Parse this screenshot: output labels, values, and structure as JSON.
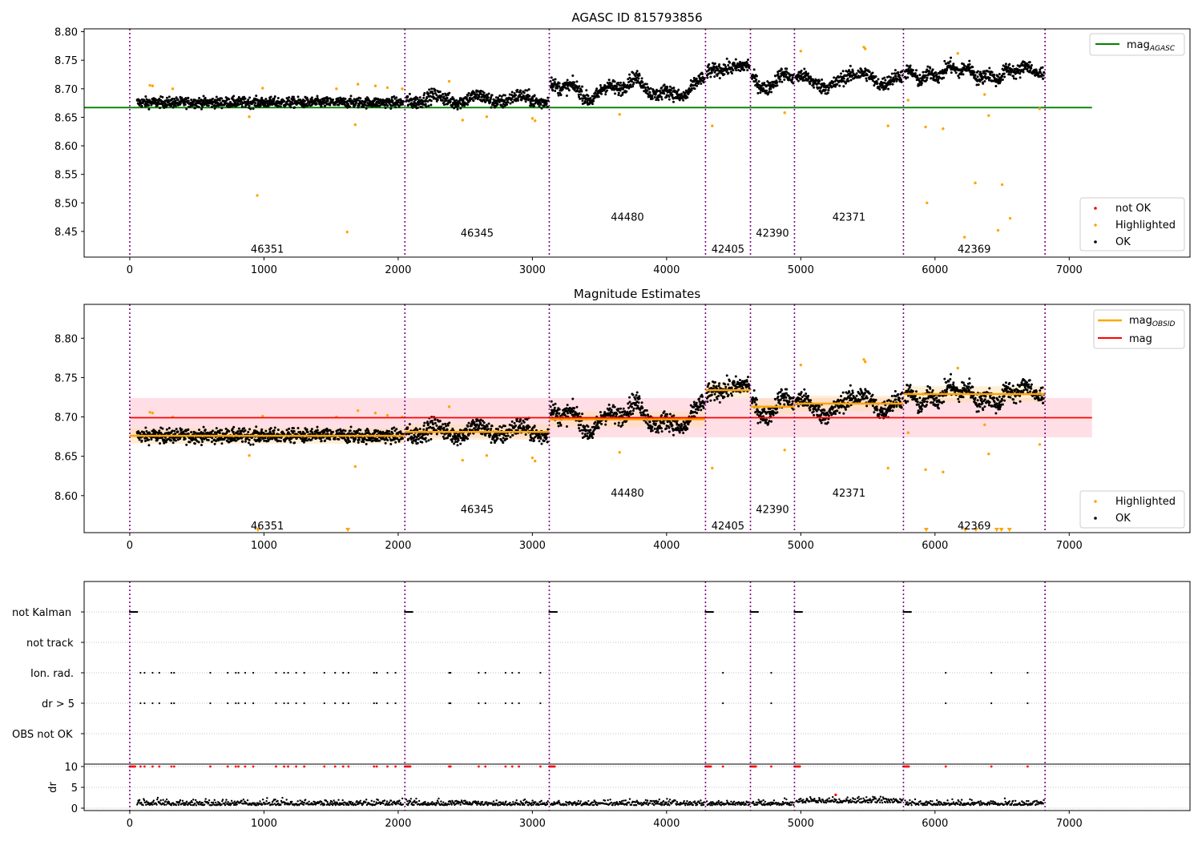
{
  "chart_data": [
    {
      "type": "scatter",
      "title": "AGASC ID 815793856",
      "xlim": [
        -340,
        7900
      ],
      "ylim": [
        8.405,
        8.805
      ],
      "xticks": [
        0,
        1000,
        2000,
        3000,
        4000,
        5000,
        6000,
        7000
      ],
      "xtick_labels": [
        "0",
        "1000",
        "2000",
        "3000",
        "4000",
        "5000",
        "6000",
        "7000"
      ],
      "yticks": [
        8.45,
        8.5,
        8.55,
        8.6,
        8.65,
        8.7,
        8.75,
        8.8
      ],
      "ytick_labels": [
        "8.45",
        "8.50",
        "8.55",
        "8.60",
        "8.65",
        "8.70",
        "8.75",
        "8.80"
      ],
      "obs_boundaries": [
        0,
        2050,
        3126,
        4290,
        4625,
        4953,
        5765,
        6820
      ],
      "obsids": [
        {
          "label": "46351",
          "x": 1025,
          "y": 8.42
        },
        {
          "label": "46345",
          "x": 2588,
          "y": 8.448
        },
        {
          "label": "44480",
          "x": 3708,
          "y": 8.476
        },
        {
          "label": "42405",
          "x": 4457,
          "y": 8.42
        },
        {
          "label": "42390",
          "x": 4789,
          "y": 8.448
        },
        {
          "label": "42371",
          "x": 5359,
          "y": 8.476
        },
        {
          "label": "42369",
          "x": 6292,
          "y": 8.42
        }
      ],
      "segments": [
        {
          "x0": 55,
          "x1": 2040,
          "base": 8.676
        },
        {
          "x0": 2060,
          "x1": 3120,
          "base": 8.682
        },
        {
          "x0": 3136,
          "x1": 4285,
          "base": 8.7
        },
        {
          "x0": 4300,
          "x1": 4620,
          "base": 8.732
        },
        {
          "x0": 4635,
          "x1": 4948,
          "base": 8.713
        },
        {
          "x0": 4963,
          "x1": 5760,
          "base": 8.716
        },
        {
          "x0": 5775,
          "x1": 6815,
          "base": 8.728
        }
      ],
      "mag_agasc": 8.667,
      "highlighted": [
        [
          950,
          8.513
        ],
        [
          1620,
          8.449
        ],
        [
          1680,
          8.637
        ],
        [
          3650,
          8.655
        ],
        [
          4340,
          8.635
        ],
        [
          4880,
          8.658
        ],
        [
          5000,
          8.766
        ],
        [
          5650,
          8.635
        ],
        [
          5800,
          8.68
        ],
        [
          5930,
          8.633
        ],
        [
          5940,
          8.5
        ],
        [
          6060,
          8.63
        ],
        [
          6220,
          8.44
        ],
        [
          6300,
          8.535
        ],
        [
          6370,
          8.69
        ],
        [
          6400,
          8.653
        ],
        [
          6470,
          8.452
        ],
        [
          6500,
          8.532
        ],
        [
          6560,
          8.473
        ],
        [
          6170,
          8.762
        ],
        [
          6780,
          8.665
        ],
        [
          150,
          8.706
        ],
        [
          170,
          8.705
        ],
        [
          320,
          8.7
        ],
        [
          990,
          8.701
        ],
        [
          1540,
          8.7
        ],
        [
          1700,
          8.708
        ],
        [
          1830,
          8.705
        ],
        [
          1920,
          8.702
        ],
        [
          2030,
          8.7
        ],
        [
          2380,
          8.713
        ],
        [
          2480,
          8.645
        ],
        [
          2660,
          8.651
        ],
        [
          3000,
          8.648
        ],
        [
          3020,
          8.644
        ],
        [
          5470,
          8.773
        ],
        [
          5480,
          8.77
        ],
        [
          890,
          8.651
        ]
      ],
      "legend_top": [
        {
          "label": "mag",
          "sub": "AGASC",
          "color": "#008000"
        }
      ],
      "legend_bottom": [
        {
          "label": "not OK",
          "color": "#ff0000"
        },
        {
          "label": "Highlighted",
          "color": "#ffa500"
        },
        {
          "label": "OK",
          "color": "#000000"
        }
      ],
      "colors": {
        "ok": "#000000",
        "highlighted": "#ffa500",
        "not_ok": "#ff0000",
        "agasc": "#008000",
        "boundary": "#800080"
      }
    },
    {
      "type": "scatter",
      "title": "Magnitude Estimates",
      "xlim": [
        -340,
        7900
      ],
      "ylim": [
        8.553,
        8.843
      ],
      "xticks": [
        0,
        1000,
        2000,
        3000,
        4000,
        5000,
        6000,
        7000
      ],
      "xtick_labels": [
        "0",
        "1000",
        "2000",
        "3000",
        "4000",
        "5000",
        "6000",
        "7000"
      ],
      "yticks": [
        8.6,
        8.65,
        8.7,
        8.75,
        8.8
      ],
      "ytick_labels": [
        "8.60",
        "8.65",
        "8.70",
        "8.75",
        "8.80"
      ],
      "obsids": [
        {
          "label": "46351",
          "x": 1025,
          "y": 8.562
        },
        {
          "label": "46345",
          "x": 2588,
          "y": 8.583
        },
        {
          "label": "44480",
          "x": 3708,
          "y": 8.604
        },
        {
          "label": "42405",
          "x": 4457,
          "y": 8.562
        },
        {
          "label": "42390",
          "x": 4789,
          "y": 8.583
        },
        {
          "label": "42371",
          "x": 5359,
          "y": 8.604
        },
        {
          "label": "42369",
          "x": 6292,
          "y": 8.562
        }
      ],
      "mag": 8.699,
      "mag_band": [
        8.674,
        8.724
      ],
      "mag_obsid": [
        {
          "x0": 0,
          "x1": 2050,
          "y": 8.676
        },
        {
          "x0": 2050,
          "x1": 3126,
          "y": 8.681
        },
        {
          "x0": 3126,
          "x1": 4290,
          "y": 8.697
        },
        {
          "x0": 4290,
          "x1": 4625,
          "y": 8.734
        },
        {
          "x0": 4625,
          "x1": 4953,
          "y": 8.713
        },
        {
          "x0": 4953,
          "x1": 5765,
          "y": 8.717
        },
        {
          "x0": 5765,
          "x1": 6820,
          "y": 8.729
        }
      ],
      "down_markers": [
        955,
        1625,
        5935,
        6225,
        6305,
        6460,
        6495,
        6555
      ],
      "legend_top": [
        {
          "label": "mag",
          "sub": "OBSID",
          "color": "#ffa500"
        },
        {
          "label": "mag",
          "sub": "",
          "color": "#ff0000"
        }
      ],
      "legend_bottom": [
        {
          "label": "Highlighted",
          "color": "#ffa500"
        },
        {
          "label": "OK",
          "color": "#000000"
        }
      ],
      "colors": {
        "band": "#ffc0cb",
        "mag": "#ff0000",
        "mag_obsid": "#ffa500",
        "obsid_band": "#ffdead"
      }
    },
    {
      "type": "scatter",
      "title": "",
      "xlim": [
        -340,
        7900
      ],
      "flag_rows": [
        "not Kalman",
        "not track",
        "Ion. rad.",
        "dr > 5",
        "OBS not OK"
      ],
      "not_kalman_x": [
        0,
        2050,
        3126,
        4290,
        4625,
        4953,
        5765
      ],
      "ion_rad_x": [
        80,
        110,
        170,
        220,
        310,
        330,
        600,
        730,
        790,
        810,
        860,
        920,
        1090,
        1150,
        1180,
        1240,
        1300,
        1450,
        1530,
        1590,
        1630,
        1820,
        1840,
        1920,
        1980,
        2380,
        2390,
        2600,
        2650,
        2800,
        2850,
        2900,
        3060,
        4420,
        4780,
        6080,
        6420,
        6690
      ],
      "dr_ylim": [
        -0.5,
        10.5
      ],
      "dr_yticks": [
        0,
        5,
        10
      ],
      "dr_ytick_labels": [
        "0",
        "5",
        "10"
      ],
      "dr_ylabel": "dr",
      "dr_bumps": [
        [
          5260,
          3.2
        ]
      ],
      "colors": {
        "grid": "#b0b0b0",
        "dr_high": "#ff0000"
      }
    }
  ]
}
